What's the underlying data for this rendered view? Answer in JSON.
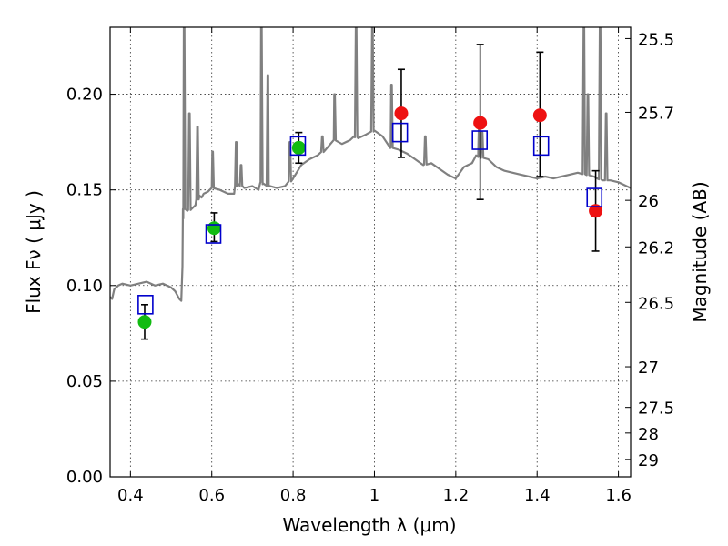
{
  "chart_data": {
    "type": "scatter",
    "title": "",
    "xlabel": "Wavelength  λ (μm)",
    "ylabel": "Flux  Fν  ( μJy )",
    "y2label": "Magnitude (AB)",
    "xlim": [
      0.35,
      1.63
    ],
    "ylim": [
      0.0,
      0.235
    ],
    "grid": true,
    "x_ticks": [
      {
        "value": 0.4,
        "label": "0.4"
      },
      {
        "value": 0.6,
        "label": "0.6"
      },
      {
        "value": 0.8,
        "label": "0.8"
      },
      {
        "value": 1.0,
        "label": "1"
      },
      {
        "value": 1.2,
        "label": "1.2"
      },
      {
        "value": 1.4,
        "label": "1.4"
      },
      {
        "value": 1.6,
        "label": "1.6"
      }
    ],
    "y_ticks": [
      {
        "value": 0.0,
        "label": "0.00"
      },
      {
        "value": 0.05,
        "label": "0.05"
      },
      {
        "value": 0.1,
        "label": "0.10"
      },
      {
        "value": 0.15,
        "label": "0.15"
      },
      {
        "value": 0.2,
        "label": "0.20"
      }
    ],
    "y2_ticks": [
      {
        "value": 25.5,
        "label": "25.5"
      },
      {
        "value": 25.7,
        "label": "25.7"
      },
      {
        "value": 26.0,
        "label": "26"
      },
      {
        "value": 26.2,
        "label": "26.2"
      },
      {
        "value": 26.5,
        "label": "26.5"
      },
      {
        "value": 27.0,
        "label": "27"
      },
      {
        "value": 27.5,
        "label": "27.5"
      },
      {
        "value": 28.0,
        "label": "28"
      },
      {
        "value": 29.0,
        "label": "29"
      }
    ],
    "colors": {
      "spectrum": "#808080",
      "optical_points": "#11bb11",
      "nir_points": "#ee1111",
      "model_boxes": "#0000cc",
      "errorbars": "#000000"
    },
    "spectrum": {
      "name": "",
      "x": [
        0.35,
        0.355,
        0.36,
        0.37,
        0.38,
        0.4,
        0.42,
        0.44,
        0.46,
        0.48,
        0.5,
        0.51,
        0.52,
        0.525,
        0.528,
        0.53,
        0.532,
        0.535,
        0.54,
        0.55,
        0.56,
        0.565,
        0.57,
        0.575,
        0.58,
        0.59,
        0.6,
        0.62,
        0.64,
        0.655,
        0.66,
        0.665,
        0.68,
        0.7,
        0.715,
        0.72,
        0.725,
        0.74,
        0.76,
        0.78,
        0.8,
        0.82,
        0.84,
        0.86,
        0.88,
        0.9,
        0.92,
        0.94,
        0.95,
        0.96,
        0.98,
        1.0,
        1.02,
        1.04,
        1.06,
        1.08,
        1.1,
        1.12,
        1.14,
        1.16,
        1.18,
        1.2,
        1.22,
        1.24,
        1.245,
        1.25,
        1.26,
        1.28,
        1.3,
        1.32,
        1.34,
        1.36,
        1.38,
        1.4,
        1.42,
        1.44,
        1.46,
        1.48,
        1.5,
        1.52,
        1.54,
        1.56,
        1.58,
        1.6,
        1.62,
        1.63
      ],
      "y": [
        0.094,
        0.093,
        0.098,
        0.1,
        0.101,
        0.1,
        0.101,
        0.102,
        0.1,
        0.101,
        0.099,
        0.097,
        0.093,
        0.092,
        0.11,
        0.135,
        0.14,
        0.141,
        0.139,
        0.14,
        0.142,
        0.145,
        0.147,
        0.146,
        0.148,
        0.149,
        0.151,
        0.15,
        0.148,
        0.148,
        0.152,
        0.153,
        0.151,
        0.152,
        0.15,
        0.154,
        0.153,
        0.152,
        0.151,
        0.152,
        0.156,
        0.163,
        0.166,
        0.168,
        0.171,
        0.176,
        0.174,
        0.176,
        0.178,
        0.177,
        0.179,
        0.181,
        0.178,
        0.172,
        0.171,
        0.169,
        0.166,
        0.163,
        0.164,
        0.161,
        0.158,
        0.156,
        0.162,
        0.164,
        0.166,
        0.168,
        0.167,
        0.166,
        0.162,
        0.16,
        0.159,
        0.158,
        0.157,
        0.156,
        0.157,
        0.156,
        0.157,
        0.158,
        0.159,
        0.158,
        0.157,
        0.155,
        0.155,
        0.154,
        0.152,
        0.151
      ]
    },
    "spectrum_lines": [
      {
        "x": 0.532,
        "peak": 0.235
      },
      {
        "x": 0.545,
        "peak": 0.19
      },
      {
        "x": 0.565,
        "peak": 0.183
      },
      {
        "x": 0.602,
        "peak": 0.17
      },
      {
        "x": 0.66,
        "peak": 0.175
      },
      {
        "x": 0.672,
        "peak": 0.163
      },
      {
        "x": 0.722,
        "peak": 0.235
      },
      {
        "x": 0.738,
        "peak": 0.21
      },
      {
        "x": 0.792,
        "peak": 0.175
      },
      {
        "x": 0.872,
        "peak": 0.178
      },
      {
        "x": 0.902,
        "peak": 0.2
      },
      {
        "x": 0.955,
        "peak": 0.235
      },
      {
        "x": 0.995,
        "peak": 0.235
      },
      {
        "x": 1.042,
        "peak": 0.205
      },
      {
        "x": 1.125,
        "peak": 0.178
      },
      {
        "x": 1.258,
        "peak": 0.188
      },
      {
        "x": 1.265,
        "peak": 0.18
      },
      {
        "x": 1.515,
        "peak": 0.235
      },
      {
        "x": 1.525,
        "peak": 0.2
      },
      {
        "x": 1.555,
        "peak": 0.235
      },
      {
        "x": 1.57,
        "peak": 0.19
      }
    ],
    "series": [
      {
        "name": "",
        "kind": "optical",
        "x": [
          0.435,
          0.606,
          0.814
        ],
        "y": [
          0.081,
          0.13,
          0.172
        ],
        "yerr_low": [
          0.072,
          0.123,
          0.164
        ],
        "yerr_high": [
          0.09,
          0.138,
          0.18
        ]
      },
      {
        "name": "",
        "kind": "nir",
        "x": [
          1.066,
          1.26,
          1.407,
          1.544
        ],
        "y": [
          0.19,
          0.185,
          0.189,
          0.139
        ],
        "yerr_low": [
          0.167,
          0.145,
          0.157,
          0.118
        ],
        "yerr_high": [
          0.213,
          0.226,
          0.222,
          0.16
        ]
      },
      {
        "name": "",
        "kind": "model",
        "x": [
          0.437,
          0.604,
          0.812,
          1.063,
          1.259,
          1.41,
          1.541
        ],
        "y": [
          0.09,
          0.127,
          0.173,
          0.18,
          0.176,
          0.173,
          0.146
        ]
      }
    ]
  }
}
